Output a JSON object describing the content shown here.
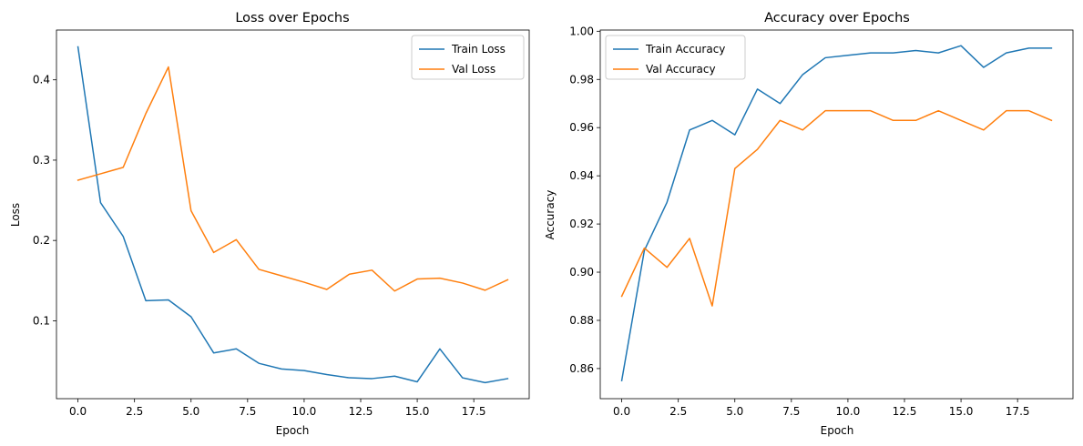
{
  "chart_data": [
    {
      "type": "line",
      "title": "Loss over Epochs",
      "xlabel": "Epoch",
      "ylabel": "Loss",
      "xlim": [
        -0.95,
        19.95
      ],
      "ylim": [
        0.003,
        0.462
      ],
      "xticks": [
        0.0,
        2.5,
        5.0,
        7.5,
        10.0,
        12.5,
        15.0,
        17.5
      ],
      "xtick_labels": [
        "0.0",
        "2.5",
        "5.0",
        "7.5",
        "10.0",
        "12.5",
        "15.0",
        "17.5"
      ],
      "yticks": [
        0.1,
        0.2,
        0.3,
        0.4
      ],
      "ytick_labels": [
        "0.1",
        "0.2",
        "0.3",
        "0.4"
      ],
      "grid": false,
      "legend_position": "top-right",
      "x": [
        0,
        1,
        2,
        3,
        4,
        5,
        6,
        7,
        8,
        9,
        10,
        11,
        12,
        13,
        14,
        15,
        16,
        17,
        18,
        19
      ],
      "series": [
        {
          "name": "Train Loss",
          "color": "#1f77b4",
          "values": [
            0.441,
            0.247,
            0.205,
            0.125,
            0.126,
            0.105,
            0.06,
            0.065,
            0.047,
            0.04,
            0.038,
            0.033,
            0.029,
            0.028,
            0.031,
            0.024,
            0.065,
            0.029,
            0.023,
            0.028
          ]
        },
        {
          "name": "Val Loss",
          "color": "#ff7f0e",
          "values": [
            0.275,
            0.283,
            0.291,
            0.358,
            0.416,
            0.237,
            0.185,
            0.201,
            0.164,
            0.156,
            0.148,
            0.139,
            0.158,
            0.163,
            0.137,
            0.152,
            0.153,
            0.147,
            0.138,
            0.151
          ]
        }
      ]
    },
    {
      "type": "line",
      "title": "Accuracy over Epochs",
      "xlabel": "Epoch",
      "ylabel": "Accuracy",
      "xlim": [
        -0.95,
        19.95
      ],
      "ylim": [
        0.8475,
        1.0005
      ],
      "xticks": [
        0.0,
        2.5,
        5.0,
        7.5,
        10.0,
        12.5,
        15.0,
        17.5
      ],
      "xtick_labels": [
        "0.0",
        "2.5",
        "5.0",
        "7.5",
        "10.0",
        "12.5",
        "15.0",
        "17.5"
      ],
      "yticks": [
        0.86,
        0.88,
        0.9,
        0.92,
        0.94,
        0.96,
        0.98,
        1.0
      ],
      "ytick_labels": [
        "0.86",
        "0.88",
        "0.90",
        "0.92",
        "0.94",
        "0.96",
        "0.98",
        "1.00"
      ],
      "grid": false,
      "legend_position": "top-left",
      "x": [
        0,
        1,
        2,
        3,
        4,
        5,
        6,
        7,
        8,
        9,
        10,
        11,
        12,
        13,
        14,
        15,
        16,
        17,
        18,
        19
      ],
      "series": [
        {
          "name": "Train Accuracy",
          "color": "#1f77b4",
          "values": [
            0.855,
            0.909,
            0.929,
            0.959,
            0.963,
            0.957,
            0.976,
            0.97,
            0.982,
            0.989,
            0.99,
            0.991,
            0.991,
            0.992,
            0.991,
            0.994,
            0.985,
            0.991,
            0.993,
            0.993
          ]
        },
        {
          "name": "Val Accuracy",
          "color": "#ff7f0e",
          "values": [
            0.89,
            0.91,
            0.902,
            0.914,
            0.886,
            0.943,
            0.951,
            0.963,
            0.959,
            0.967,
            0.967,
            0.967,
            0.963,
            0.963,
            0.967,
            0.963,
            0.959,
            0.967,
            0.967,
            0.963
          ]
        }
      ]
    }
  ]
}
